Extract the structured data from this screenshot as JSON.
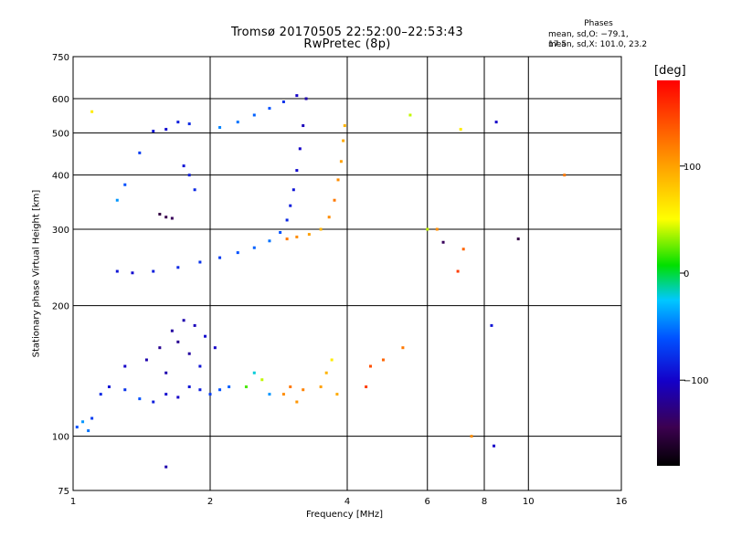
{
  "header": {
    "title_line1": "Tromsø 20170505 22:52:00–22:53:43",
    "title_line2": "RwPretec (8p)"
  },
  "info_box": {
    "heading": "Phases",
    "line_o": "mean, sd,O: −79.1, 17.5",
    "line_x": "mean, sd,X: 101.0, 23.2"
  },
  "colorbar": {
    "unit": "[deg]",
    "ticks": [
      "100",
      "0",
      "−100"
    ],
    "tick_values": [
      100,
      0,
      -100
    ],
    "range": [
      -180,
      180
    ],
    "colormap": "rainbow (black-purple-blue-cyan-green-yellow-orange-red)"
  },
  "chart_data": {
    "type": "scatter",
    "title": "Tromsø 20170505 22:52:00–22:53:43",
    "subtitle": "RwPretec (8p)",
    "xlabel": "Frequency [MHz]",
    "ylabel": "Stationary phase Virtual Height [km]",
    "x_scale": "log",
    "y_scale": "log",
    "xlim": [
      1,
      16
    ],
    "ylim": [
      75,
      750
    ],
    "x_ticks": [
      "1",
      "2",
      "4",
      "6",
      "8",
      "10",
      "16"
    ],
    "x_tick_values": [
      1,
      2,
      4,
      6,
      8,
      10,
      16
    ],
    "y_ticks": [
      "750",
      "600",
      "500",
      "400",
      "300",
      "200",
      "100",
      "75"
    ],
    "y_tick_values": [
      750,
      600,
      500,
      400,
      300,
      200,
      100,
      75
    ],
    "x_grid": [
      2,
      4,
      6,
      8,
      10
    ],
    "y_grid": [
      100,
      200,
      300,
      400,
      500,
      600
    ],
    "color_by": "phase [deg]",
    "points": [
      [
        1.02,
        105,
        -60
      ],
      [
        1.05,
        108,
        -40
      ],
      [
        1.1,
        110,
        -70
      ],
      [
        1.08,
        103,
        -50
      ],
      [
        1.15,
        125,
        -80
      ],
      [
        1.2,
        130,
        -90
      ],
      [
        1.3,
        128,
        -75
      ],
      [
        1.4,
        122,
        -60
      ],
      [
        1.5,
        120,
        -85
      ],
      [
        1.6,
        125,
        -95
      ],
      [
        1.7,
        123,
        -100
      ],
      [
        1.8,
        130,
        -90
      ],
      [
        1.9,
        128,
        -85
      ],
      [
        2.0,
        125,
        -70
      ],
      [
        2.1,
        128,
        -60
      ],
      [
        2.2,
        130,
        -55
      ],
      [
        1.3,
        145,
        -100
      ],
      [
        1.45,
        150,
        -110
      ],
      [
        1.55,
        160,
        -120
      ],
      [
        1.65,
        175,
        -115
      ],
      [
        1.75,
        185,
        -110
      ],
      [
        1.85,
        180,
        -105
      ],
      [
        1.95,
        170,
        -95
      ],
      [
        2.05,
        160,
        -100
      ],
      [
        1.7,
        165,
        -120
      ],
      [
        1.8,
        155,
        -115
      ],
      [
        1.6,
        140,
        -110
      ],
      [
        1.9,
        145,
        -90
      ],
      [
        2.4,
        130,
        20
      ],
      [
        2.5,
        140,
        -20
      ],
      [
        2.6,
        135,
        40
      ],
      [
        2.7,
        125,
        -40
      ],
      [
        2.9,
        125,
        110
      ],
      [
        3.0,
        130,
        120
      ],
      [
        3.1,
        120,
        105
      ],
      [
        3.2,
        128,
        115
      ],
      [
        3.5,
        130,
        100
      ],
      [
        3.6,
        140,
        90
      ],
      [
        3.7,
        150,
        60
      ],
      [
        3.8,
        125,
        95
      ],
      [
        4.4,
        130,
        150
      ],
      [
        4.5,
        145,
        140
      ],
      [
        4.8,
        150,
        130
      ],
      [
        5.3,
        160,
        120
      ],
      [
        1.25,
        240,
        -90
      ],
      [
        1.35,
        238,
        -95
      ],
      [
        1.5,
        240,
        -85
      ],
      [
        1.7,
        245,
        -80
      ],
      [
        1.9,
        252,
        -75
      ],
      [
        2.1,
        258,
        -70
      ],
      [
        2.3,
        265,
        -60
      ],
      [
        2.5,
        272,
        -55
      ],
      [
        2.7,
        282,
        -50
      ],
      [
        2.85,
        295,
        -60
      ],
      [
        2.95,
        315,
        -80
      ],
      [
        3.0,
        340,
        -85
      ],
      [
        3.05,
        370,
        -90
      ],
      [
        3.1,
        410,
        -95
      ],
      [
        3.15,
        460,
        -100
      ],
      [
        3.2,
        520,
        -105
      ],
      [
        3.25,
        600,
        -110
      ],
      [
        3.1,
        610,
        -100
      ],
      [
        2.9,
        590,
        -75
      ],
      [
        2.7,
        570,
        -60
      ],
      [
        2.5,
        550,
        -55
      ],
      [
        2.3,
        530,
        -50
      ],
      [
        2.1,
        515,
        -45
      ],
      [
        2.95,
        285,
        120
      ],
      [
        3.1,
        288,
        110
      ],
      [
        3.3,
        292,
        100
      ],
      [
        3.5,
        300,
        90
      ],
      [
        3.65,
        320,
        110
      ],
      [
        3.75,
        350,
        120
      ],
      [
        3.82,
        390,
        110
      ],
      [
        3.88,
        430,
        100
      ],
      [
        3.92,
        480,
        95
      ],
      [
        3.95,
        520,
        90
      ],
      [
        1.5,
        505,
        -90
      ],
      [
        1.6,
        510,
        -95
      ],
      [
        1.7,
        530,
        -85
      ],
      [
        1.8,
        525,
        -80
      ],
      [
        1.75,
        420,
        -90
      ],
      [
        1.8,
        400,
        -85
      ],
      [
        1.85,
        370,
        -80
      ],
      [
        1.55,
        325,
        -150
      ],
      [
        1.6,
        320,
        -145
      ],
      [
        1.65,
        318,
        -140
      ],
      [
        1.3,
        380,
        -60
      ],
      [
        1.25,
        350,
        -40
      ],
      [
        1.4,
        450,
        -70
      ],
      [
        6.0,
        300,
        40
      ],
      [
        6.5,
        280,
        -140
      ],
      [
        7.0,
        240,
        150
      ],
      [
        7.2,
        270,
        130
      ],
      [
        8.3,
        180,
        -90
      ],
      [
        9.5,
        285,
        -150
      ],
      [
        12.0,
        400,
        120
      ],
      [
        8.5,
        530,
        -100
      ],
      [
        5.5,
        550,
        40
      ],
      [
        6.3,
        300,
        110
      ],
      [
        7.1,
        510,
        60
      ],
      [
        7.5,
        100,
        110
      ],
      [
        1.6,
        85,
        -110
      ],
      [
        1.1,
        560,
        60
      ],
      [
        8.4,
        95,
        -100
      ]
    ]
  }
}
